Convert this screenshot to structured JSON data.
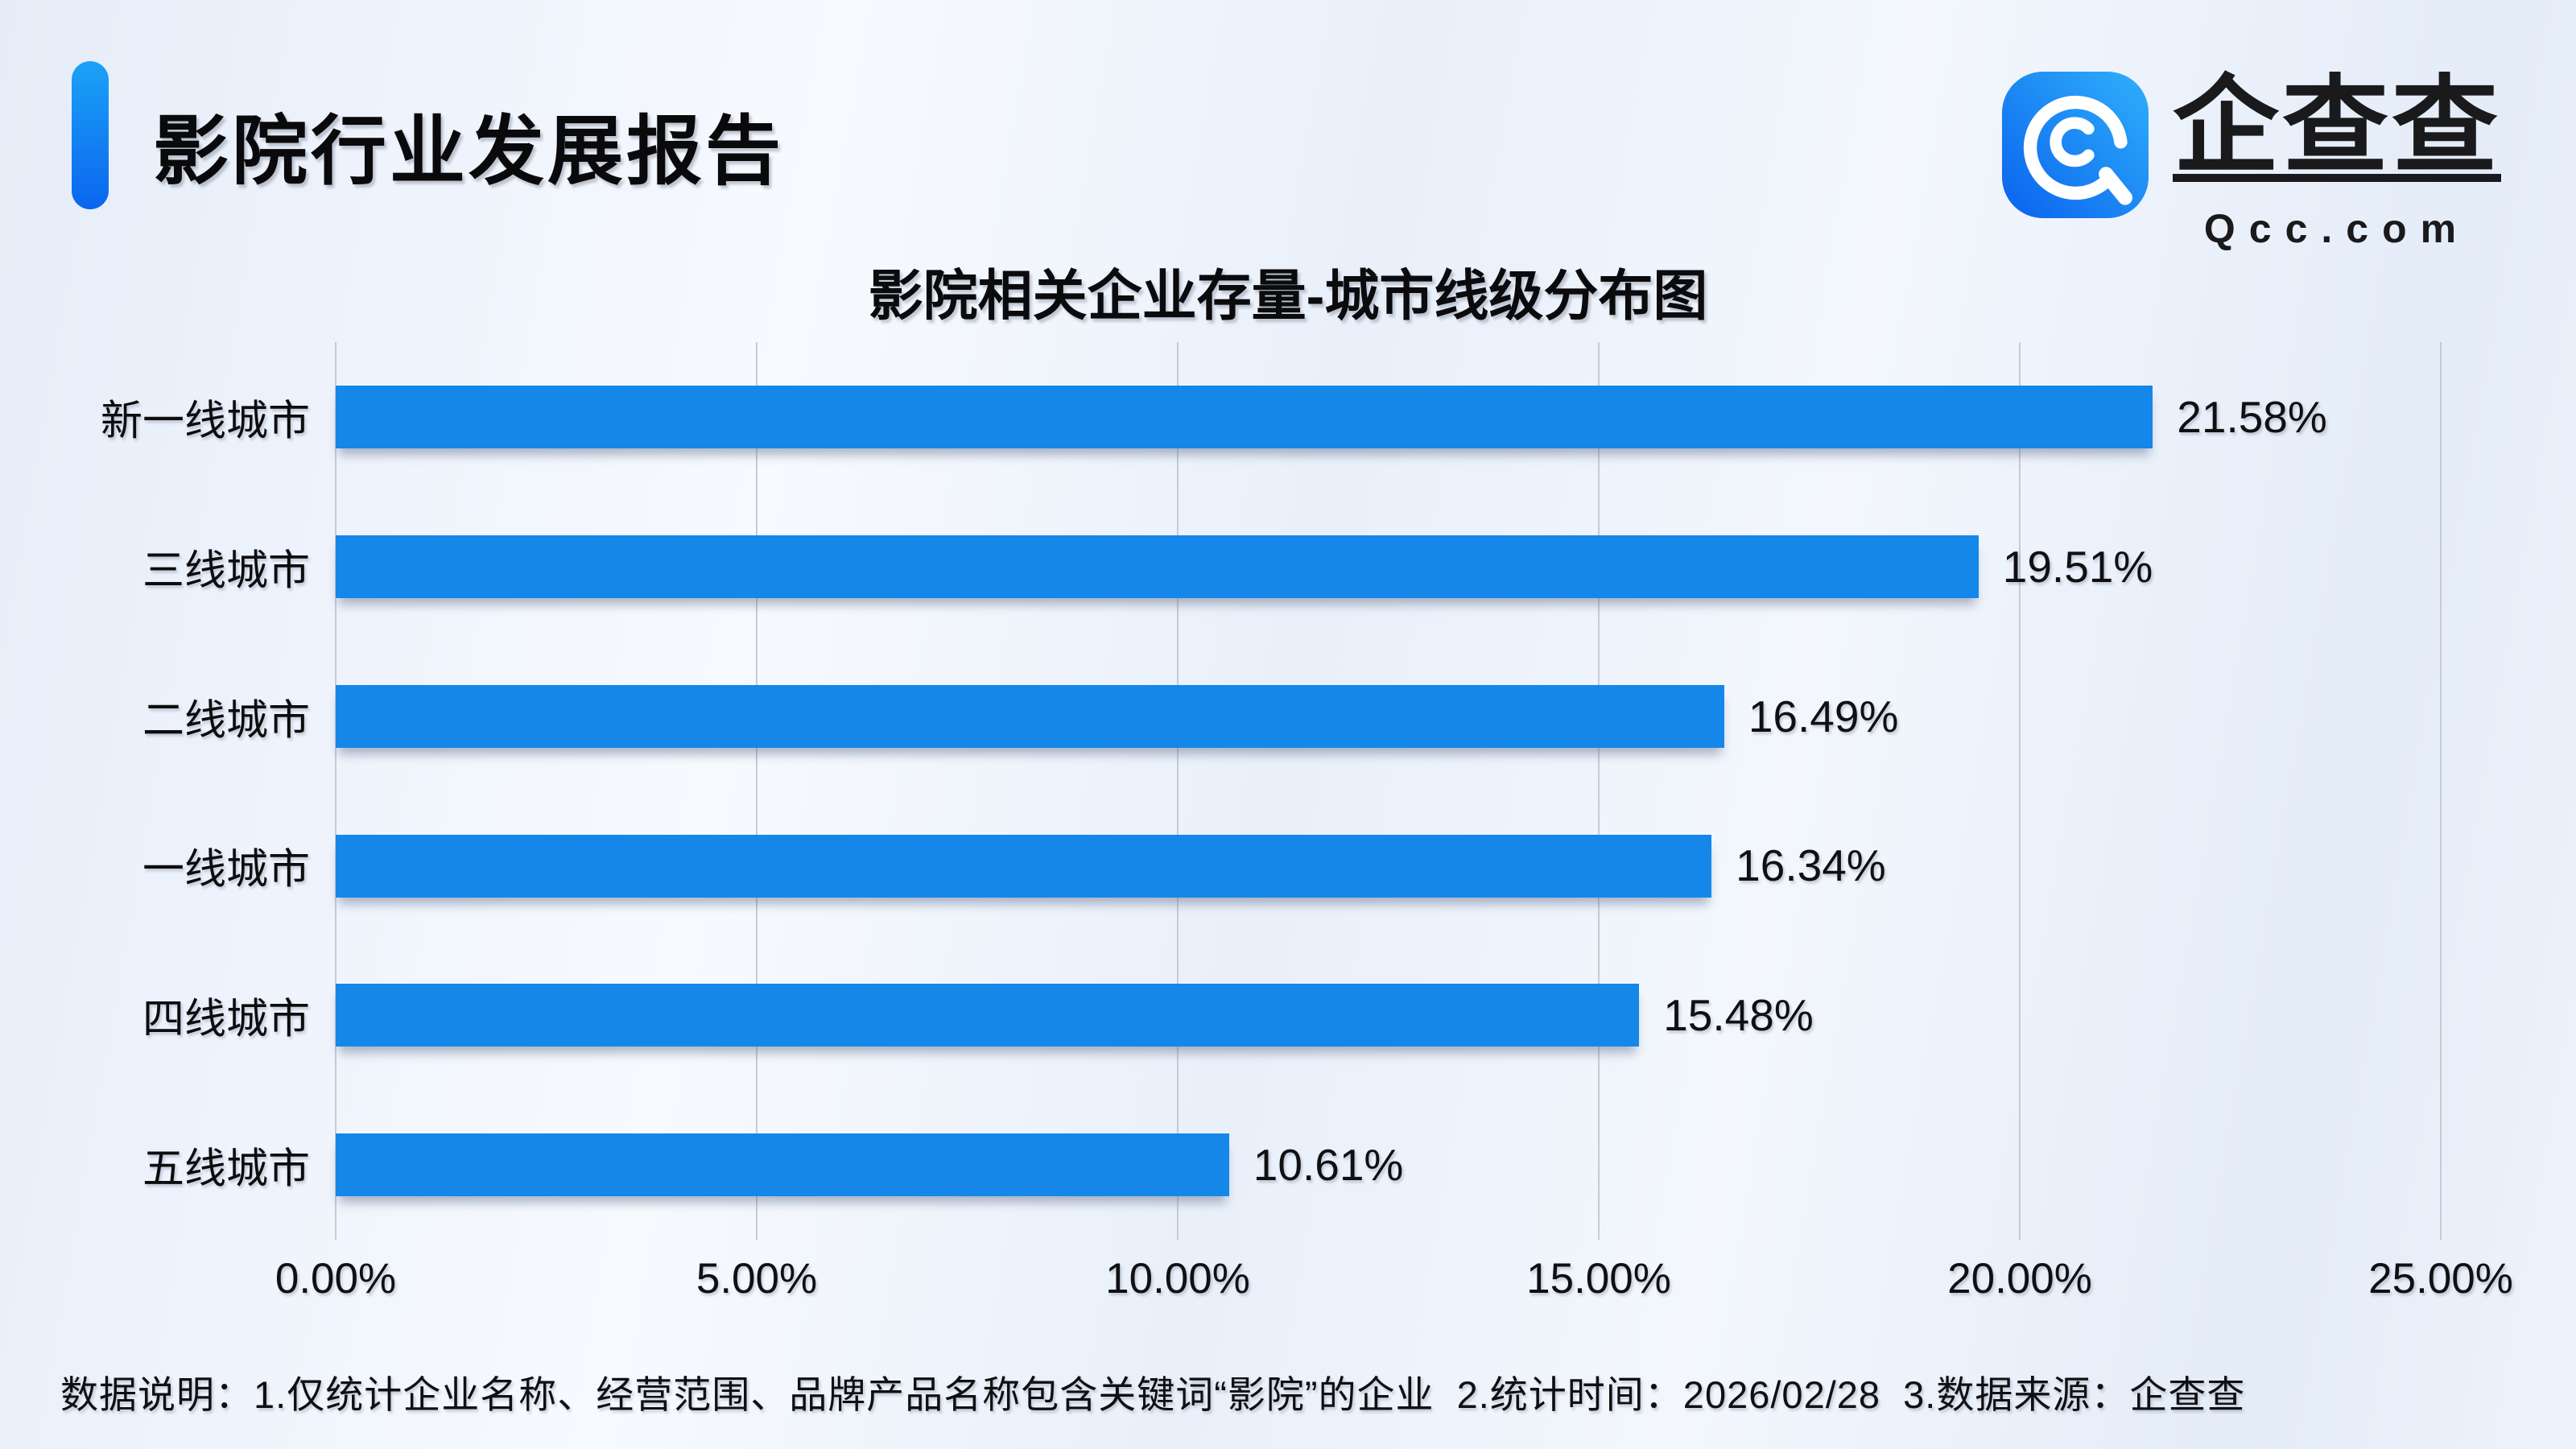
{
  "page": {
    "report_title": "影院行业发展报告",
    "footer_note": "数据说明：1.仅统计企业名称、经营范围、品牌产品名称包含关键词“影院”的企业  2.统计时间：2026/02/28  3.数据来源：企查查"
  },
  "logo": {
    "brand_name": "企查查",
    "brand_domain": "Qcc.com"
  },
  "colors": {
    "bar_blue": "#1487E9",
    "accent_gradient_top": "#1BA2F7",
    "accent_gradient_bottom": "#0B66EE",
    "background": "#ECF1FB",
    "gridline": "#C6CBD4",
    "text_dark": "#0C0C0E"
  },
  "chart_data": {
    "type": "bar",
    "orientation": "horizontal",
    "title": "影院相关企业存量-城市线级分布图",
    "categories": [
      "新一线城市",
      "三线城市",
      "二线城市",
      "一线城市",
      "四线城市",
      "五线城市"
    ],
    "values": [
      21.58,
      19.51,
      16.49,
      16.34,
      15.48,
      10.61
    ],
    "value_labels": [
      "21.58%",
      "19.51%",
      "16.49%",
      "16.34%",
      "15.48%",
      "10.61%"
    ],
    "x_ticks": [
      "0.00%",
      "5.00%",
      "10.00%",
      "15.00%",
      "20.00%",
      "25.00%"
    ],
    "x_tick_values": [
      0,
      5,
      10,
      15,
      20,
      25
    ],
    "xlim": [
      0,
      25
    ],
    "xlabel": "",
    "ylabel": "",
    "grid": true,
    "legend": false,
    "bar_color": "#1487E9"
  }
}
